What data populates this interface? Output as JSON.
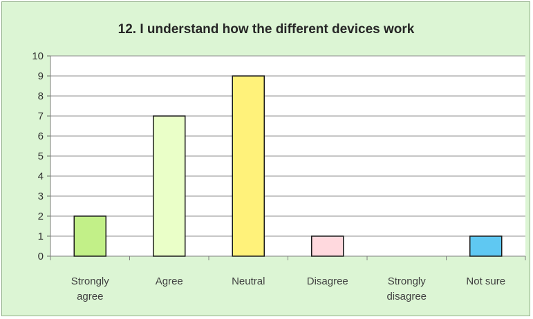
{
  "chart_data": {
    "type": "bar",
    "title": "12. I understand how the different devices work",
    "xlabel": "",
    "ylabel": "",
    "ylim": [
      0,
      10
    ],
    "yticks": [
      "0",
      "1",
      "2",
      "3",
      "4",
      "5",
      "6",
      "7",
      "8",
      "9",
      "10"
    ],
    "grid": true,
    "legend": "none",
    "categories": [
      [
        "Strongly",
        "agree"
      ],
      [
        "Agree"
      ],
      [
        "Neutral"
      ],
      [
        "Disagree"
      ],
      [
        "Strongly",
        "disagree"
      ],
      [
        "Not sure"
      ]
    ],
    "values": [
      2,
      7,
      9,
      1,
      0,
      1
    ],
    "bar_colors": [
      "#c2f088",
      "#eaffc8",
      "#fff27a",
      "#ffd9de",
      "#e6e6e6",
      "#5fc8f2"
    ],
    "colors": {
      "background": "#dcf5d4",
      "plot_area": "#ffffff",
      "gridline": "#8c8c8c",
      "bar_outline": "#1a1a1a"
    }
  }
}
